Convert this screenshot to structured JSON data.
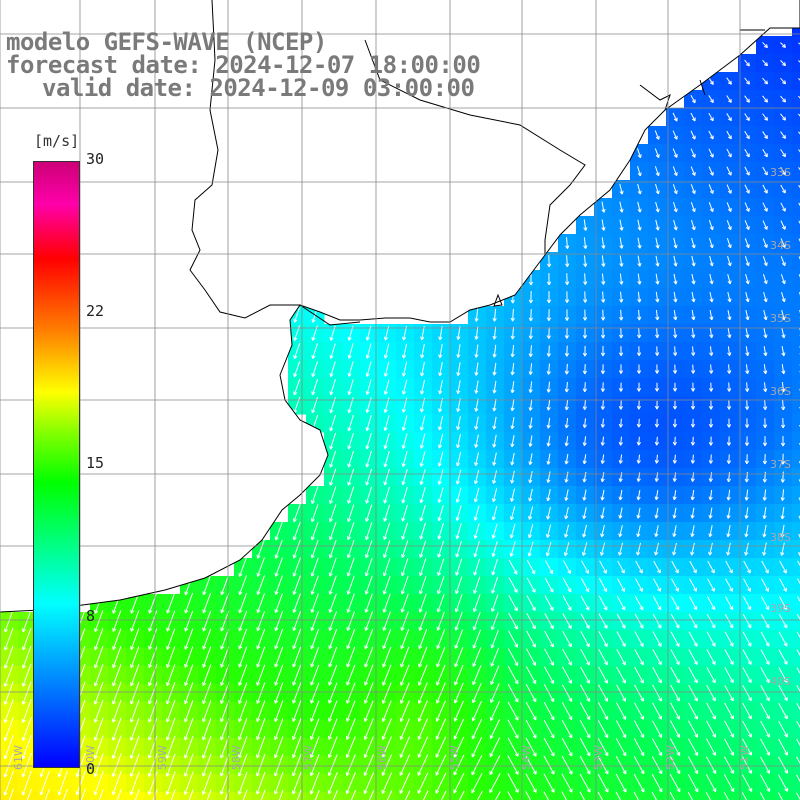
{
  "title": {
    "line1": "modelo GEFS-WAVE (NCEP)",
    "line2": "forecast date: 2024-12-07 18:00:00",
    "line3": "valid date: 2024-12-09 03:00:00"
  },
  "colorbar": {
    "unit": "[m/s]",
    "ticks": [
      "30",
      "22",
      "15",
      "8",
      "0"
    ],
    "tick_values": [
      30,
      22,
      15,
      8,
      0
    ],
    "range": [
      0,
      30
    ],
    "colors": [
      "#0000ff",
      "#00aaff",
      "#00ffff",
      "#00ff00",
      "#ffff00",
      "#ff8000",
      "#ff0000",
      "#cc0077"
    ]
  },
  "lat_labels": [
    "33S",
    "34S",
    "35S",
    "36S",
    "37S",
    "38S",
    "39S",
    "40S"
  ],
  "lon_labels": [
    "61W",
    "60W",
    "59W",
    "58W",
    "57W",
    "56W",
    "55W",
    "54W",
    "53W",
    "52W",
    "51W"
  ],
  "map": {
    "field": "wind speed with direction arrows",
    "land_color": "#ffffff",
    "coast_color": "#000000",
    "grid_color": "#888888",
    "arrow_color": "#ffffff"
  }
}
